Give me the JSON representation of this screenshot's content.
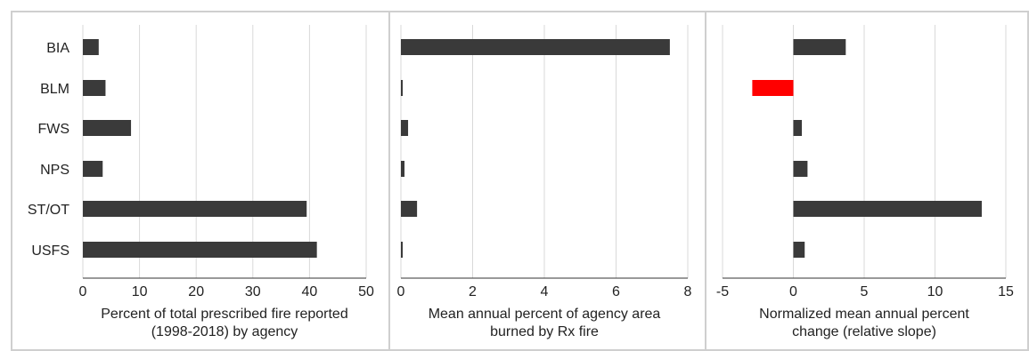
{
  "colors": {
    "bar": "#3a3a3a",
    "highlight": "#ff0000",
    "grid": "#d9d9d9",
    "axis": "#333333",
    "panel_border": "#cfcfcf"
  },
  "chart_data": [
    {
      "type": "bar",
      "orientation": "horizontal",
      "categories": [
        "BIA",
        "BLM",
        "FWS",
        "NPS",
        "ST/OT",
        "USFS"
      ],
      "values": [
        2.8,
        4.0,
        8.5,
        3.5,
        39.5,
        41.3
      ],
      "xlabel": "Percent of total prescribed fire reported (1998-2018) by agency",
      "xlabel_lines": [
        "Percent of total prescribed fire reported",
        "(1998-2018) by agency"
      ],
      "xlim": [
        0,
        50
      ],
      "xticks": [
        0,
        10,
        20,
        30,
        40,
        50
      ],
      "grid": "vertical"
    },
    {
      "type": "bar",
      "orientation": "horizontal",
      "categories": [
        "BIA",
        "BLM",
        "FWS",
        "NPS",
        "ST/OT",
        "USFS"
      ],
      "values": [
        7.5,
        0.05,
        0.2,
        0.1,
        0.45,
        0.05
      ],
      "xlabel": "Mean annual percent of agency area burned by Rx fire",
      "xlabel_lines": [
        "Mean annual percent of agency area",
        "burned by Rx fire"
      ],
      "xlim": [
        0,
        8
      ],
      "xticks": [
        0,
        2,
        4,
        6,
        8
      ],
      "grid": "vertical"
    },
    {
      "type": "bar",
      "orientation": "horizontal",
      "categories": [
        "BIA",
        "BLM",
        "FWS",
        "NPS",
        "ST/OT",
        "USFS"
      ],
      "values": [
        3.7,
        -2.9,
        0.6,
        1.0,
        13.3,
        0.8
      ],
      "xlabel": "Normalized mean annual percent change (relative slope)",
      "xlabel_lines": [
        "Normalized mean annual percent",
        "change (relative slope)"
      ],
      "xlim": [
        -5,
        15
      ],
      "xticks": [
        -5,
        0,
        5,
        10,
        15
      ],
      "grid": "vertical",
      "negative_color": "red"
    }
  ]
}
